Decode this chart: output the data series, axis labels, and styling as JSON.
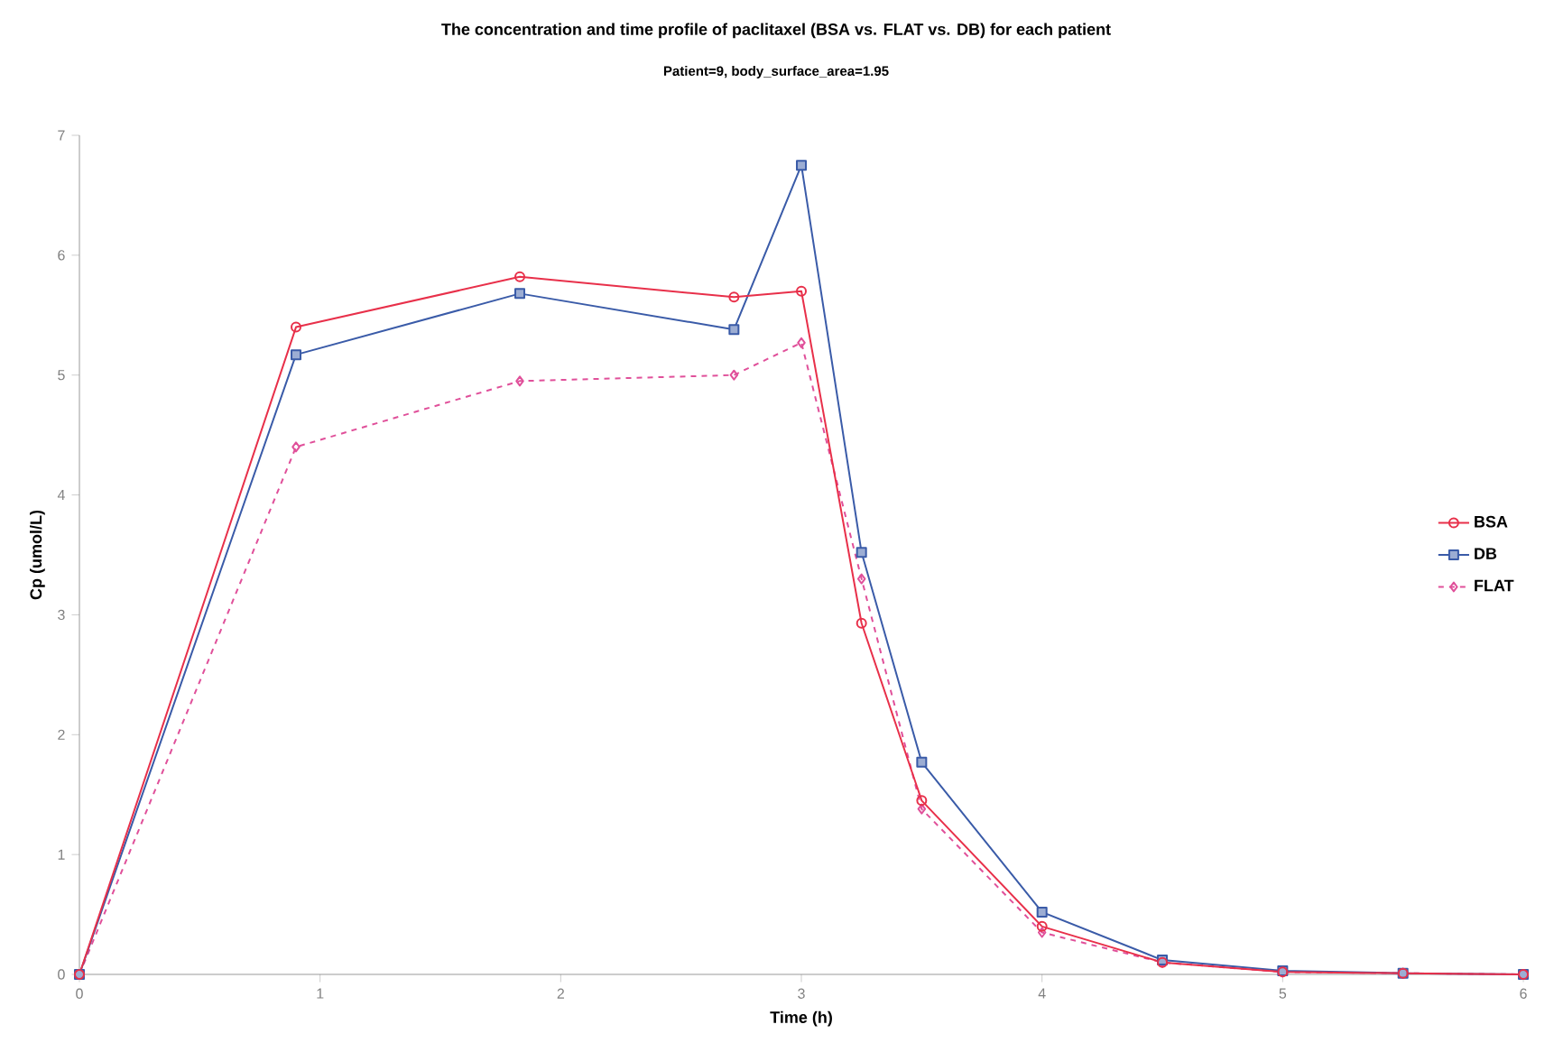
{
  "chart_data": {
    "type": "line",
    "title": "The concentration and time profile of paclitaxel (BSA vs. FLAT vs. DB) for each patient",
    "subtitle": "Patient=9, body_surface_area=1.95",
    "xlabel": "Time (h)",
    "ylabel": "Cp (umol/L)",
    "x": [
      0,
      0.9,
      1.83,
      2.72,
      3,
      3.25,
      3.5,
      4,
      4.5,
      5,
      5.5,
      6
    ],
    "series": [
      {
        "name": "BSA",
        "color": "#e8304a",
        "marker": "circle",
        "line_style": "solid",
        "values": [
          0,
          5.4,
          5.82,
          5.65,
          5.7,
          2.93,
          1.45,
          0.4,
          0.1,
          0.02,
          0.01,
          0
        ]
      },
      {
        "name": "DB",
        "color": "#3a5ba8",
        "marker": "square",
        "line_style": "solid",
        "values": [
          0,
          5.17,
          5.68,
          5.38,
          6.75,
          3.52,
          1.77,
          0.52,
          0.12,
          0.03,
          0.01,
          0
        ]
      },
      {
        "name": "FLAT",
        "color": "#e0509a",
        "marker": "diamond",
        "line_style": "dashed",
        "values": [
          0,
          4.4,
          4.95,
          5.0,
          5.27,
          3.3,
          1.38,
          0.35,
          0.1,
          0.02,
          0.01,
          0
        ]
      }
    ],
    "xlim": [
      0,
      6
    ],
    "xticks": [
      0,
      1,
      2,
      3,
      4,
      5,
      6
    ],
    "ylim": [
      0,
      7
    ],
    "yticks": [
      0,
      1,
      2,
      3,
      4,
      5,
      6,
      7
    ],
    "grid": false,
    "legend": "right"
  }
}
